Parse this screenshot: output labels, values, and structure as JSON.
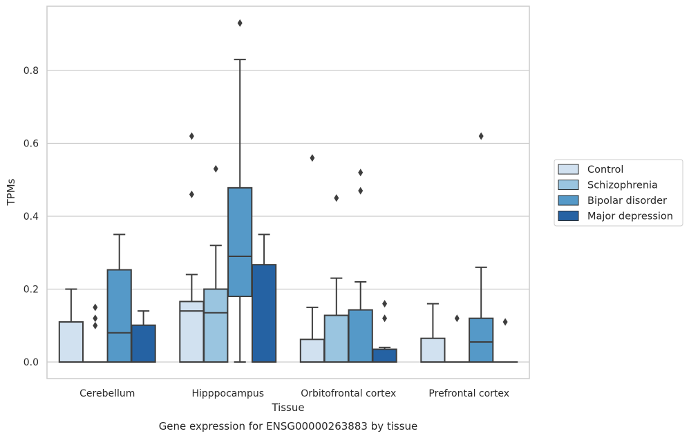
{
  "chart_data": {
    "type": "box",
    "caption": "Gene expression for ENSG00000263883 by tissue",
    "xlabel": "Tissue",
    "ylabel": "TPMs",
    "ylim": [
      -0.045,
      0.97
    ],
    "yticks": [
      0.0,
      0.2,
      0.4,
      0.6,
      0.8
    ],
    "ytick_labels": [
      "0.0",
      "0.2",
      "0.4",
      "0.6",
      "0.8"
    ],
    "grid": "horizontal",
    "legend_position": "right",
    "categories": [
      "Cerebellum",
      "Hipppocampus",
      "Orbitofrontal cortex",
      "Prefrontal cortex"
    ],
    "series": [
      {
        "name": "Control",
        "color": "#d1e1f0",
        "boxes": [
          {
            "q1": 0.0,
            "median": 0.0,
            "q3": 0.11,
            "wlow": 0.0,
            "whigh": 0.2,
            "outliers": []
          },
          {
            "q1": 0.0,
            "median": 0.14,
            "q3": 0.166,
            "wlow": 0.0,
            "whigh": 0.24,
            "outliers": [
              0.46,
              0.62
            ]
          },
          {
            "q1": 0.0,
            "median": 0.0,
            "q3": 0.062,
            "wlow": 0.0,
            "whigh": 0.15,
            "outliers": [
              0.56
            ]
          },
          {
            "q1": 0.0,
            "median": 0.0,
            "q3": 0.065,
            "wlow": 0.0,
            "whigh": 0.16,
            "outliers": []
          }
        ]
      },
      {
        "name": "Schizophrenia",
        "color": "#9ac5e0",
        "boxes": [
          {
            "q1": 0.0,
            "median": 0.0,
            "q3": 0.0,
            "wlow": 0.0,
            "whigh": 0.0,
            "outliers": [
              0.1,
              0.12,
              0.15
            ]
          },
          {
            "q1": 0.0,
            "median": 0.135,
            "q3": 0.2,
            "wlow": 0.0,
            "whigh": 0.32,
            "outliers": [
              0.53
            ]
          },
          {
            "q1": 0.0,
            "median": 0.0,
            "q3": 0.128,
            "wlow": 0.0,
            "whigh": 0.23,
            "outliers": [
              0.45
            ]
          },
          {
            "q1": 0.0,
            "median": 0.0,
            "q3": 0.0,
            "wlow": 0.0,
            "whigh": 0.0,
            "outliers": [
              0.12
            ]
          }
        ]
      },
      {
        "name": "Bipolar disorder",
        "color": "#5599c8",
        "boxes": [
          {
            "q1": 0.0,
            "median": 0.08,
            "q3": 0.253,
            "wlow": 0.0,
            "whigh": 0.35,
            "outliers": []
          },
          {
            "q1": 0.18,
            "median": 0.29,
            "q3": 0.478,
            "wlow": 0.0,
            "whigh": 0.83,
            "outliers": [
              0.93
            ]
          },
          {
            "q1": 0.0,
            "median": 0.0,
            "q3": 0.143,
            "wlow": 0.0,
            "whigh": 0.22,
            "outliers": [
              0.47,
              0.52
            ]
          },
          {
            "q1": 0.0,
            "median": 0.055,
            "q3": 0.12,
            "wlow": 0.0,
            "whigh": 0.26,
            "outliers": [
              0.62
            ]
          }
        ]
      },
      {
        "name": "Major depression",
        "color": "#2562a3",
        "boxes": [
          {
            "q1": 0.0,
            "median": 0.0,
            "q3": 0.101,
            "wlow": 0.0,
            "whigh": 0.14,
            "outliers": []
          },
          {
            "q1": 0.0,
            "median": 0.0,
            "q3": 0.267,
            "wlow": 0.0,
            "whigh": 0.35,
            "outliers": []
          },
          {
            "q1": 0.0,
            "median": 0.0,
            "q3": 0.035,
            "wlow": 0.0,
            "whigh": 0.04,
            "outliers": [
              0.12,
              0.16
            ]
          },
          {
            "q1": 0.0,
            "median": 0.0,
            "q3": 0.0,
            "wlow": 0.0,
            "whigh": 0.0,
            "outliers": [
              0.11
            ]
          }
        ]
      }
    ]
  }
}
